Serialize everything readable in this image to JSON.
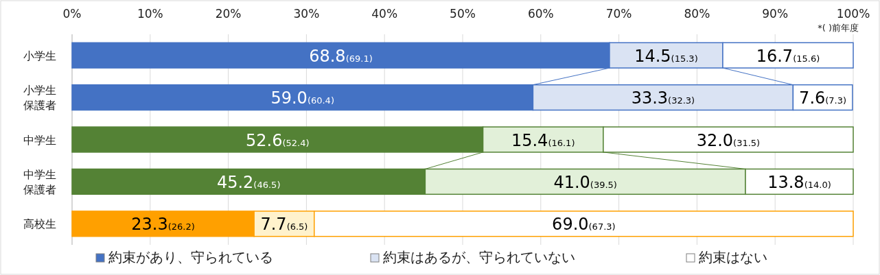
{
  "chart_data": {
    "type": "bar",
    "orientation": "horizontal",
    "stacked": true,
    "categories": [
      "小学生",
      "小学生保護者",
      "中学生",
      "中学生保護者",
      "高校生"
    ],
    "series": [
      {
        "name": "約束があり、守られている",
        "color": "#4472c4",
        "colors": [
          "#4472c4",
          "#4472c4",
          "#548235",
          "#548235",
          "#ffa000"
        ],
        "values": [
          68.8,
          59.0,
          52.6,
          45.2,
          23.3
        ],
        "value_labels": [
          "68.8(69.1)",
          "59.0(60.4)",
          "52.6(52.4)",
          "45.2(46.5)",
          "23.3(26.2)"
        ]
      },
      {
        "name": "約束はあるが、守られていない",
        "color": "#dae3f3",
        "colors": [
          "#dae3f3",
          "#dae3f3",
          "#e2f0d9",
          "#e2f0d9",
          "#fff2cc"
        ],
        "values": [
          14.5,
          33.3,
          15.4,
          41.0,
          7.7
        ],
        "value_labels": [
          "14.5(15.3)",
          "33.3(32.3)",
          "15.4(16.1)",
          "41.0(39.5)",
          "7.7(6.5)"
        ]
      },
      {
        "name": "約束はない",
        "color": "#ffffff",
        "colors": [
          "#ffffff",
          "#ffffff",
          "#ffffff",
          "#ffffff",
          "#ffffff"
        ],
        "values": [
          16.7,
          7.6,
          32.0,
          13.8,
          69.0
        ],
        "value_labels": [
          "16.7(15.6)",
          "7.6(7.3)",
          "32.0(31.5)",
          "13.8(14.0)",
          "69.0(67.3)"
        ]
      }
    ],
    "xlim": [
      0,
      100
    ],
    "xticks": [
      {
        "value": 0,
        "label": "0%"
      },
      {
        "value": 10,
        "label": "10%"
      },
      {
        "value": 20,
        "label": "20%"
      },
      {
        "value": 30,
        "label": "30%"
      },
      {
        "value": 40,
        "label": "40%"
      },
      {
        "value": 50,
        "label": "50%"
      },
      {
        "value": 60,
        "label": "60%"
      },
      {
        "value": 70,
        "label": "70%"
      },
      {
        "value": 80,
        "label": "80%"
      },
      {
        "value": 90,
        "label": "90%"
      },
      {
        "value": 100,
        "label": "100%"
      }
    ],
    "grid": "x",
    "legend": "bottom",
    "annotations": [
      "*( )前年度"
    ]
  }
}
